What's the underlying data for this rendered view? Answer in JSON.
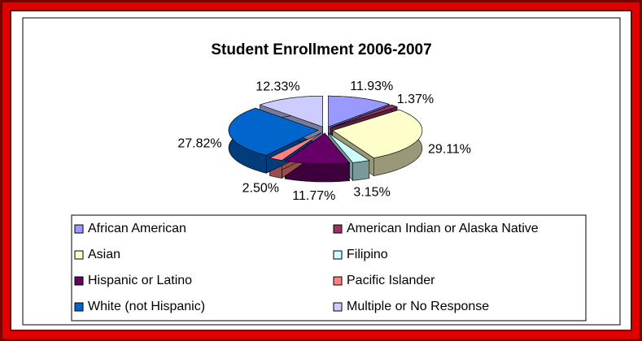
{
  "chart_data": {
    "type": "pie",
    "title": "Student Enrollment 2006-2007",
    "categories": [
      "African American",
      "American Indian or Alaska Native",
      "Asian",
      "Filipino",
      "Hispanic or Latino",
      "Pacific Islander",
      "White (not Hispanic)",
      "Multiple or No Response"
    ],
    "values": [
      11.93,
      1.37,
      29.11,
      3.15,
      11.77,
      2.5,
      27.82,
      12.33
    ],
    "value_labels": [
      "11.93%",
      "1.37%",
      "29.11%",
      "3.15%",
      "11.77%",
      "2.50%",
      "27.82%",
      "12.33%"
    ],
    "colors": [
      "#9999ff",
      "#993366",
      "#ffffcc",
      "#ccffff",
      "#660066",
      "#ff8080",
      "#0066cc",
      "#ccccff"
    ],
    "legend": "bottom"
  }
}
